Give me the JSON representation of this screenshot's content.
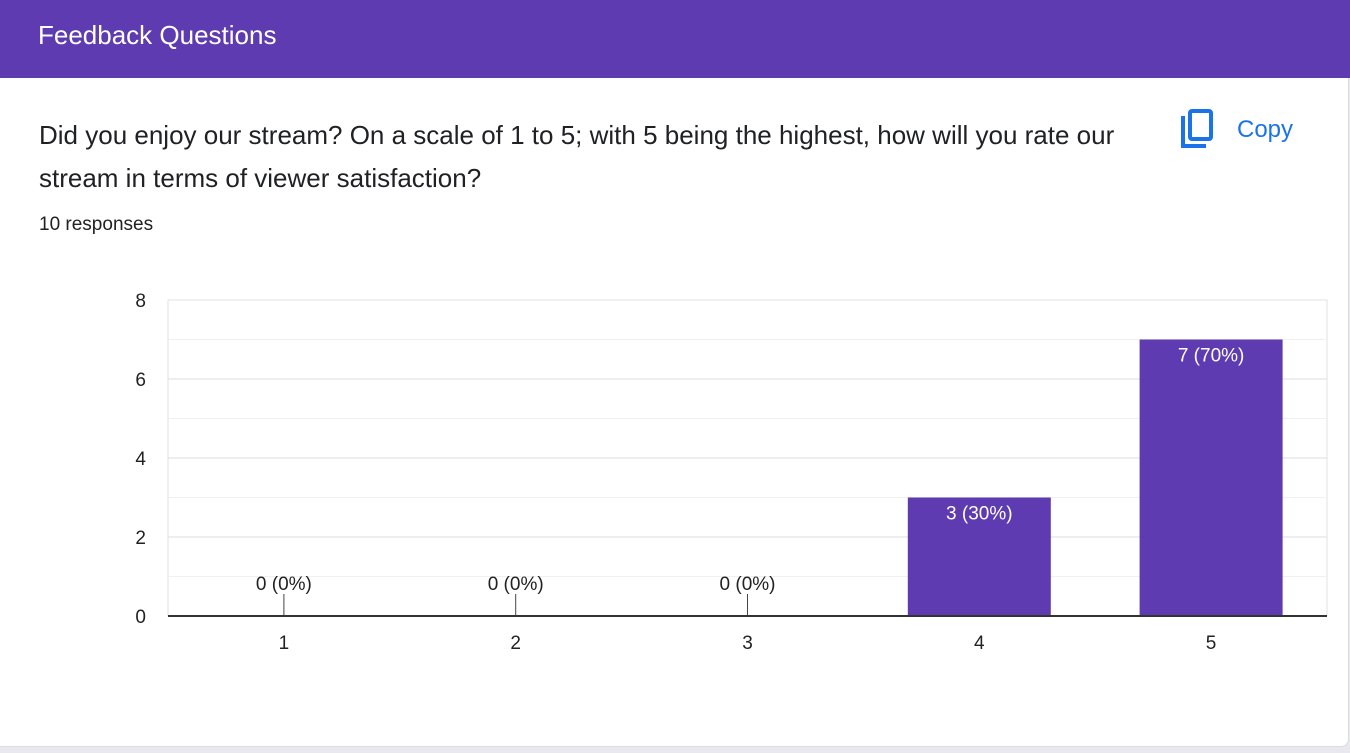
{
  "header": {
    "title": "Feedback Questions"
  },
  "question": {
    "text": "Did you enjoy our stream? On a scale of 1 to 5; with 5 being the highest, how will you rate our stream in terms of viewer satisfaction?",
    "responses": "10 responses",
    "copy_label": "Copy",
    "copy_icon": "copy-icon"
  },
  "colors": {
    "header": "#5e3bb0",
    "bar": "#5e3bb0",
    "copy": "#1a73e8"
  },
  "chart_data": {
    "type": "bar",
    "categories": [
      "1",
      "2",
      "3",
      "4",
      "5"
    ],
    "values": [
      0,
      0,
      0,
      3,
      7
    ],
    "labels": [
      "0 (0%)",
      "0 (0%)",
      "0 (0%)",
      "3 (30%)",
      "7 (70%)"
    ],
    "ylim": [
      0,
      8
    ],
    "yticks": [
      0,
      2,
      4,
      6,
      8
    ],
    "grid": true,
    "title": "",
    "xlabel": "",
    "ylabel": ""
  }
}
